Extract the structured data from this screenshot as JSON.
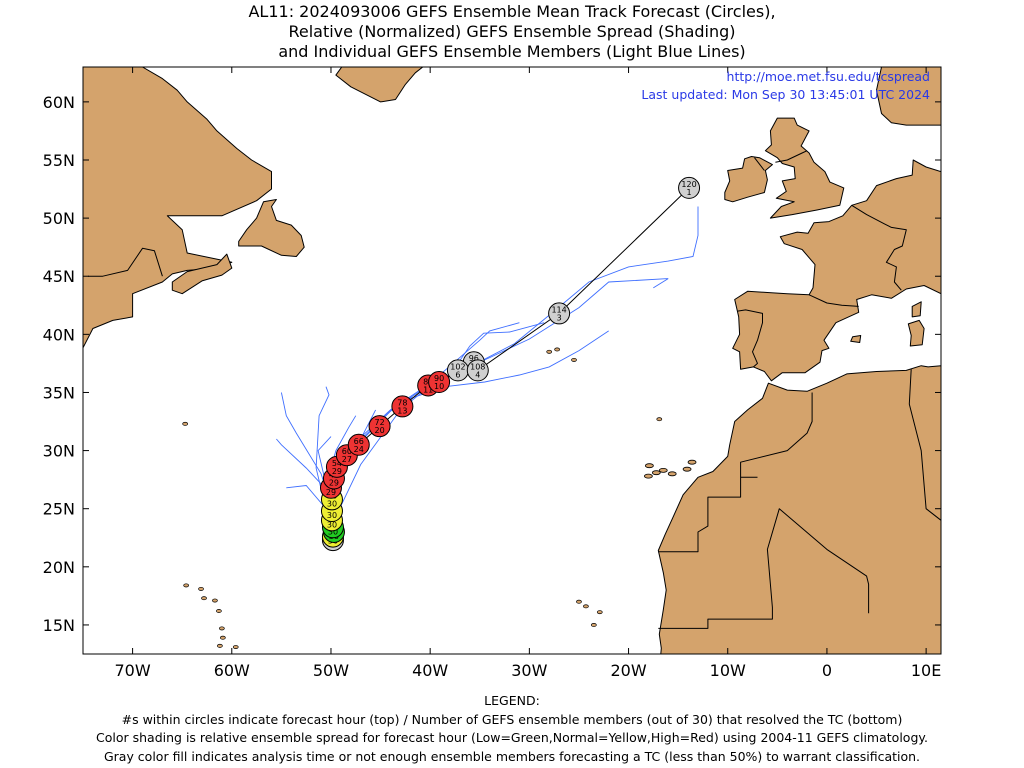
{
  "title": {
    "line1": "AL11: 2024093006 GEFS Ensemble Mean Track Forecast (Circles),",
    "line2": "Relative (Normalized) GEFS Ensemble Spread (Shading)",
    "line3": "and Individual GEFS Ensemble Members (Light Blue Lines)"
  },
  "source": {
    "url": "http://moe.met.fsu.edu/tcspread",
    "updated": "Last updated: Mon Sep 30 13:45:01 UTC 2024"
  },
  "map": {
    "lon_range": [
      -75,
      11.5
    ],
    "lat_range": [
      12.5,
      63
    ],
    "lon_ticks": [
      {
        "value": -70,
        "label": "70W"
      },
      {
        "value": -60,
        "label": "60W"
      },
      {
        "value": -50,
        "label": "50W"
      },
      {
        "value": -40,
        "label": "40W"
      },
      {
        "value": -30,
        "label": "30W"
      },
      {
        "value": -20,
        "label": "20W"
      },
      {
        "value": -10,
        "label": "10W"
      },
      {
        "value": 0,
        "label": "0"
      },
      {
        "value": 10,
        "label": "10E"
      }
    ],
    "lat_ticks": [
      {
        "value": 15,
        "label": "15N"
      },
      {
        "value": 20,
        "label": "20N"
      },
      {
        "value": 25,
        "label": "25N"
      },
      {
        "value": 30,
        "label": "30N"
      },
      {
        "value": 35,
        "label": "35N"
      },
      {
        "value": 40,
        "label": "40N"
      },
      {
        "value": 45,
        "label": "45N"
      },
      {
        "value": 50,
        "label": "50N"
      },
      {
        "value": 55,
        "label": "55N"
      },
      {
        "value": 60,
        "label": "60N"
      }
    ],
    "colors": {
      "land": "#d4a36c",
      "ocean": "#ffffff",
      "member_track": "#3f6fff",
      "mean_track": "#000000",
      "spread_low": "#22cc22",
      "spread_normal": "#eeee33",
      "spread_high": "#ee3333",
      "unclassified": "#d0d0d0",
      "url_text": "#2a39e6"
    }
  },
  "track": [
    {
      "hour": "0",
      "members": "30",
      "lon": -49.8,
      "lat": 22.3,
      "spread": "unclassified"
    },
    {
      "hour": "6",
      "members": "30",
      "lon": -49.8,
      "lat": 22.6,
      "spread": "yellow"
    },
    {
      "hour": "12",
      "members": "30",
      "lon": -49.7,
      "lat": 23.0,
      "spread": "green"
    },
    {
      "hour": "18",
      "members": "30",
      "lon": -49.8,
      "lat": 23.4,
      "spread": "green"
    },
    {
      "hour": "24",
      "members": "30",
      "lon": -49.9,
      "lat": 24.0,
      "spread": "yellow"
    },
    {
      "hour": "30",
      "members": "30",
      "lon": -49.9,
      "lat": 24.8,
      "spread": "yellow"
    },
    {
      "hour": "36",
      "members": "30",
      "lon": -49.9,
      "lat": 25.8,
      "spread": "yellow"
    },
    {
      "hour": "42",
      "members": "29",
      "lon": -50.0,
      "lat": 26.8,
      "spread": "red"
    },
    {
      "hour": "48",
      "members": "29",
      "lon": -49.7,
      "lat": 27.6,
      "spread": "red"
    },
    {
      "hour": "54",
      "members": "29",
      "lon": -49.4,
      "lat": 28.6,
      "spread": "red"
    },
    {
      "hour": "60",
      "members": "27",
      "lon": -48.4,
      "lat": 29.6,
      "spread": "red"
    },
    {
      "hour": "66",
      "members": "24",
      "lon": -47.2,
      "lat": 30.5,
      "spread": "red"
    },
    {
      "hour": "72",
      "members": "20",
      "lon": -45.1,
      "lat": 32.1,
      "spread": "red"
    },
    {
      "hour": "78",
      "members": "13",
      "lon": -42.8,
      "lat": 33.8,
      "spread": "red"
    },
    {
      "hour": "84",
      "members": "11",
      "lon": -40.2,
      "lat": 35.6,
      "spread": "red"
    },
    {
      "hour": "90",
      "members": "10",
      "lon": -39.1,
      "lat": 35.9,
      "spread": "red"
    },
    {
      "hour": "96",
      "members": "5",
      "lon": -35.6,
      "lat": 37.6,
      "spread": "unclassified"
    },
    {
      "hour": "102",
      "members": "6",
      "lon": -37.2,
      "lat": 36.9,
      "spread": "unclassified"
    },
    {
      "hour": "108",
      "members": "4",
      "lon": -35.2,
      "lat": 36.9,
      "spread": "unclassified"
    },
    {
      "hour": "114",
      "members": "3",
      "lon": -27.0,
      "lat": 41.8,
      "spread": "unclassified"
    },
    {
      "hour": "120",
      "members": "1",
      "lon": -13.9,
      "lat": 52.6,
      "spread": "unclassified"
    }
  ],
  "members": [
    [
      [
        -49.8,
        22.4
      ],
      [
        -49.9,
        25
      ],
      [
        -51,
        28
      ],
      [
        -53.5,
        31.5
      ],
      [
        -54.5,
        33
      ],
      [
        -55,
        35
      ]
    ],
    [
      [
        -49.9,
        22.5
      ],
      [
        -50.8,
        26
      ],
      [
        -51.5,
        28.5
      ],
      [
        -51.2,
        33
      ],
      [
        -50.2,
        34.8
      ],
      [
        -50.5,
        35.5
      ]
    ],
    [
      [
        -49.9,
        22.6
      ],
      [
        -50.3,
        26.5
      ],
      [
        -52.5,
        28.5
      ],
      [
        -55,
        30.5
      ],
      [
        -55.5,
        31
      ]
    ],
    [
      [
        -49.8,
        22.5
      ],
      [
        -50.5,
        25
      ],
      [
        -52.5,
        27
      ],
      [
        -54.5,
        26.8
      ]
    ],
    [
      [
        -49.8,
        22.6
      ],
      [
        -50.5,
        27
      ],
      [
        -49.5,
        30
      ],
      [
        -48.2,
        32
      ],
      [
        -47.5,
        33
      ]
    ],
    [
      [
        -49.9,
        22.8
      ],
      [
        -50.2,
        26
      ],
      [
        -51.3,
        30
      ],
      [
        -50,
        31.2
      ]
    ],
    [
      [
        -49.6,
        23
      ],
      [
        -49.3,
        27
      ],
      [
        -47.6,
        30
      ],
      [
        -45.5,
        33.5
      ]
    ],
    [
      [
        -49.7,
        24
      ],
      [
        -47,
        28.8
      ],
      [
        -43,
        33.5
      ],
      [
        -40,
        35.6
      ],
      [
        -36,
        37.2
      ],
      [
        -31.5,
        39.2
      ],
      [
        -27.5,
        42
      ],
      [
        -24,
        44.5
      ],
      [
        -20,
        45.8
      ],
      [
        -16,
        46.3
      ],
      [
        -13.5,
        46.7
      ],
      [
        -13,
        48.5
      ],
      [
        -13,
        51
      ]
    ],
    [
      [
        -48.5,
        29.5
      ],
      [
        -44,
        33.4
      ],
      [
        -40,
        35.7
      ],
      [
        -34,
        38
      ],
      [
        -30,
        39.6
      ],
      [
        -25,
        42.3
      ],
      [
        -22,
        44.5
      ],
      [
        -16,
        44.8
      ],
      [
        -17.5,
        44
      ]
    ],
    [
      [
        -48.2,
        30.2
      ],
      [
        -44,
        33.5
      ],
      [
        -40,
        35.8
      ],
      [
        -35,
        39.5
      ],
      [
        -34,
        40.3
      ],
      [
        -31,
        41
      ]
    ],
    [
      [
        -47.8,
        30.3
      ],
      [
        -43,
        34.2
      ],
      [
        -38.5,
        35.5
      ],
      [
        -34.5,
        35.9
      ],
      [
        -31,
        36.5
      ],
      [
        -28,
        37.2
      ],
      [
        -25,
        38.6
      ],
      [
        -22,
        40.3
      ]
    ],
    [
      [
        -41,
        35.3
      ],
      [
        -38,
        36.5
      ],
      [
        -36,
        39
      ],
      [
        -34.6,
        40.1
      ],
      [
        -32,
        40.2
      ],
      [
        -28.5,
        41
      ]
    ]
  ],
  "legend": {
    "heading": "LEGEND:",
    "line1": "#s within circles indicate forecast hour (top) / Number of GEFS ensemble members (out of 30) that resolved the TC (bottom)",
    "line2": "Color shading is relative ensemble spread for forecast hour (Low=Green,Normal=Yellow,High=Red) using 2004-11 GEFS climatology.",
    "line3": "Gray color fill indicates analysis time or not enough ensemble members forecasting a TC (less than 50%) to warrant classification."
  }
}
